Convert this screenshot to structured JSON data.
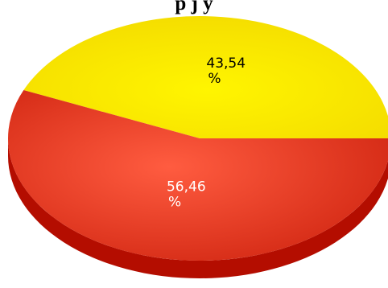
{
  "chart_data": {
    "type": "pie",
    "title": "p                j                y",
    "slices": [
      {
        "name": "",
        "value": 43.54,
        "label": "43,54",
        "unit": "%",
        "color": "#ffee00",
        "text_color": "#000000"
      },
      {
        "name": "",
        "value": 56.46,
        "label": "56,46",
        "unit": "%",
        "color": "#e03018",
        "text_color": "#ffffff"
      }
    ],
    "depth_colors": [
      "#d2c200",
      "#b40d00"
    ],
    "three_d": true,
    "legend": "none"
  }
}
